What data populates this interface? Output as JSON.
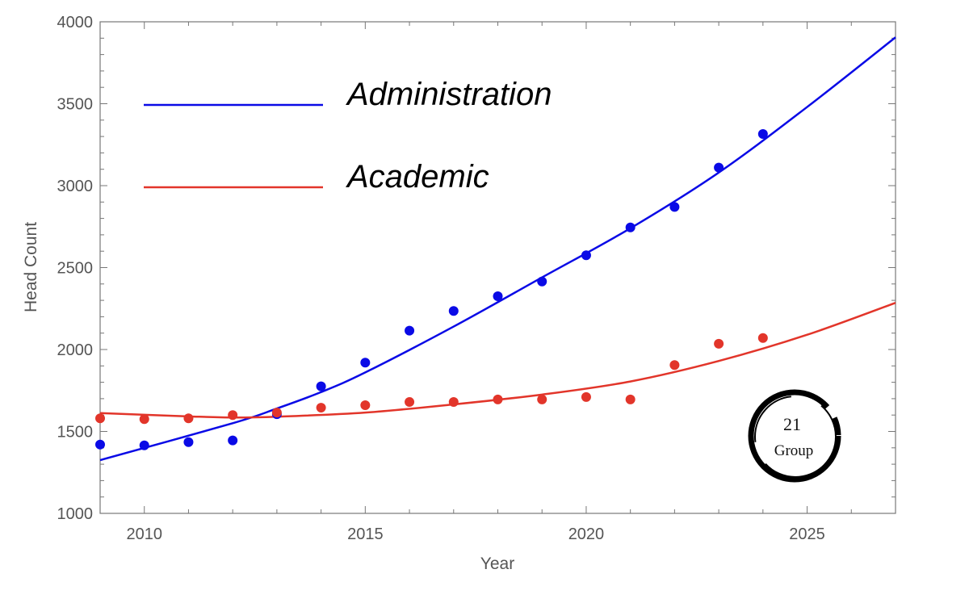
{
  "chart_data": {
    "type": "scatter",
    "title": "",
    "xlabel": "Year",
    "ylabel": "Head Count",
    "xlim": [
      2009,
      2027
    ],
    "ylim": [
      1000,
      4000
    ],
    "x_ticks": [
      2010,
      2015,
      2020,
      2025
    ],
    "y_ticks": [
      1000,
      1500,
      2000,
      2500,
      3000,
      3500,
      4000
    ],
    "x_tick_labels": [
      "2010",
      "2015",
      "2020",
      "2025"
    ],
    "y_tick_labels": [
      "1000",
      "1500",
      "2000",
      "2500",
      "3000",
      "3500",
      "4000"
    ],
    "legend_position": "top-left",
    "series": [
      {
        "name": "Administration",
        "color": "#0a0ae6",
        "x": [
          2009,
          2010,
          2011,
          2012,
          2013,
          2014,
          2015,
          2016,
          2017,
          2018,
          2019,
          2020,
          2021,
          2022,
          2023,
          2024
        ],
        "y": [
          1420,
          1415,
          1435,
          1445,
          1605,
          1775,
          1920,
          2115,
          2235,
          2325,
          2415,
          2575,
          2745,
          2870,
          3110,
          3315
        ],
        "fit_points": [
          [
            2009,
            1325
          ],
          [
            2012,
            1550
          ],
          [
            2013,
            1640
          ],
          [
            2014,
            1740
          ],
          [
            2015,
            1860
          ],
          [
            2017,
            2140
          ],
          [
            2019,
            2440
          ],
          [
            2021,
            2740
          ],
          [
            2023,
            3080
          ],
          [
            2025,
            3480
          ],
          [
            2027,
            3905
          ]
        ]
      },
      {
        "name": "Academic",
        "color": "#e2352a",
        "x": [
          2009,
          2010,
          2011,
          2012,
          2013,
          2014,
          2015,
          2016,
          2017,
          2018,
          2019,
          2020,
          2021,
          2022,
          2023,
          2024
        ],
        "y": [
          1580,
          1575,
          1580,
          1600,
          1615,
          1645,
          1660,
          1680,
          1680,
          1695,
          1695,
          1710,
          1695,
          1905,
          2035,
          2070
        ],
        "fit_points": [
          [
            2009,
            1612
          ],
          [
            2011,
            1592
          ],
          [
            2012,
            1585
          ],
          [
            2013,
            1590
          ],
          [
            2015,
            1615
          ],
          [
            2017,
            1665
          ],
          [
            2019,
            1725
          ],
          [
            2021,
            1805
          ],
          [
            2023,
            1930
          ],
          [
            2025,
            2090
          ],
          [
            2027,
            2285
          ]
        ]
      }
    ]
  },
  "logo": {
    "line1": "21",
    "line2": "Group"
  }
}
